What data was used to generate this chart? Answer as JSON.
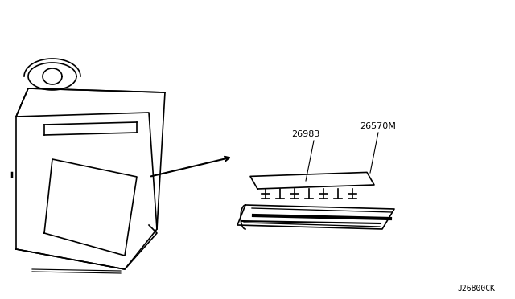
{
  "title": "",
  "background_color": "#ffffff",
  "diagram_code": "J26800CK",
  "part_labels": [
    "26983",
    "26570M"
  ],
  "line_color": "#000000",
  "line_width": 1.2,
  "fig_width": 6.4,
  "fig_height": 3.72,
  "dpi": 100
}
